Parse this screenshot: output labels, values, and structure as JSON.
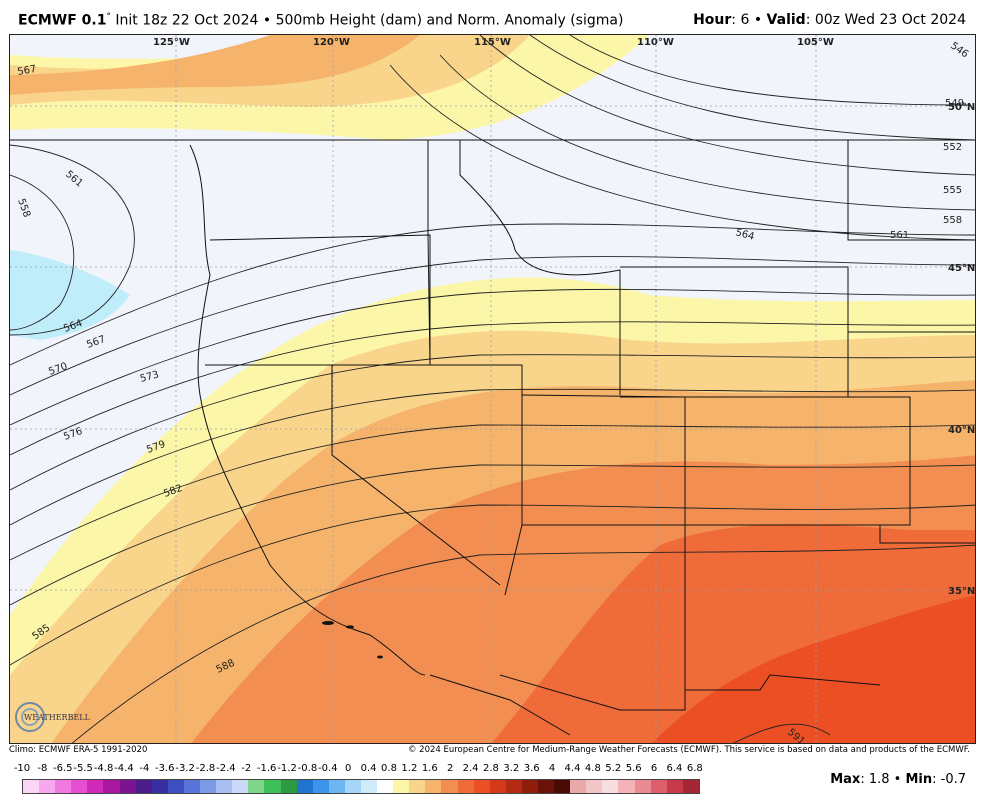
{
  "header": {
    "model": "ECMWF 0.1",
    "model_sup": "°",
    "init": "Init 18z 22 Oct 2024",
    "separator": "•",
    "product": "500mb Height (dam) and Norm. Anomaly (sigma)",
    "hour_label": "Hour",
    "hour_value": ": 6",
    "valid_label": "Valid",
    "valid_value": ": 00z Wed 23 Oct 2024"
  },
  "map": {
    "lon_labels": [
      "125°W",
      "120°W",
      "115°W",
      "110°W",
      "105°W"
    ],
    "lat_labels": [
      "50°N",
      "45°N",
      "40°N",
      "35°N"
    ],
    "contour_labels": [
      "546",
      "549",
      "552",
      "555",
      "558",
      "561",
      "564",
      "567",
      "570",
      "573",
      "576",
      "579",
      "582",
      "585",
      "588",
      "591",
      "558",
      "561",
      "564",
      "567"
    ],
    "anomaly_colors": {
      "neutral": "#f2f4fb",
      "light_blue": "#bfeefa",
      "pale_yellow": "#fbf6a8",
      "light_orange": "#f9d58b",
      "orange": "#f6b36c",
      "dark_orange": "#f28e52",
      "red_orange": "#ef6b3a",
      "red": "#ec4f24"
    }
  },
  "footer": {
    "climo": "Climo: ECMWF ERA-5 1991-2020",
    "copyright": "© 2024 European Centre for Medium-Range Weather Forecasts (ECMWF). This service is based on data and products of the ECMWF."
  },
  "legend": {
    "ticks": [
      "-10",
      "-8",
      "-6.5",
      "-5.5",
      "-4.8",
      "-4.4",
      "-4",
      "-3.6",
      "-3.2",
      "-2.8",
      "-2.4",
      "-2",
      "-1.6",
      "-1.2",
      "-0.8",
      "-0.4",
      "0",
      "0.4",
      "0.8",
      "1.2",
      "1.6",
      "2",
      "2.4",
      "2.8",
      "3.2",
      "3.6",
      "4",
      "4.4",
      "4.8",
      "5.2",
      "5.6",
      "6",
      "6.4",
      "6.8"
    ],
    "colors": [
      "#fbd6f6",
      "#f7a8ee",
      "#f07ae0",
      "#e64fcf",
      "#d12ab8",
      "#a8199f",
      "#7a1490",
      "#4b1b8a",
      "#3a2fa0",
      "#3c4fc0",
      "#5874d8",
      "#7d9ae6",
      "#a8bdf0",
      "#cdd9f8",
      "#7fd68a",
      "#3fbf58",
      "#2b9a42",
      "#1f74d0",
      "#3b95ea",
      "#6cb7f2",
      "#a5d6f7",
      "#d0ecfa",
      "#ffffff",
      "#fbf6a8",
      "#f9d58b",
      "#f6b36c",
      "#f28e52",
      "#ef6b3a",
      "#ec4f24",
      "#d43a1a",
      "#b52a12",
      "#8e1d0c",
      "#6a1208",
      "#4a0a04",
      "#e8a9a9",
      "#f2c6c6",
      "#f8dede",
      "#f4b3b8",
      "#ea8a92",
      "#dd5f6b",
      "#c73a47",
      "#a52634"
    ]
  },
  "stats": {
    "max_label": "Max",
    "max_value": ": 1.8",
    "sep": "•",
    "min_label": "Min",
    "min_value": ": -0.7"
  },
  "logo": {
    "text": "WEATHERBELL"
  }
}
